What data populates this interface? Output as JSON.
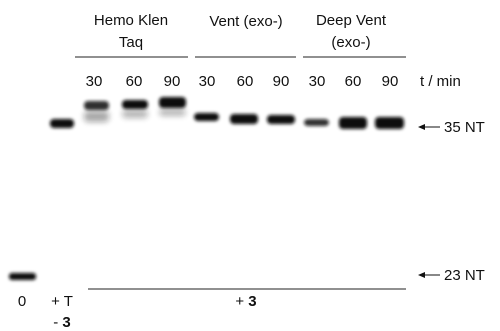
{
  "groups": [
    {
      "lines": [
        "Hemo Klen",
        "Taq"
      ],
      "times": [
        "30",
        "60",
        "90"
      ]
    },
    {
      "lines": [
        "Vent (exo-)"
      ],
      "times": [
        "30",
        "60",
        "90"
      ]
    },
    {
      "lines": [
        "Deep Vent",
        "(exo-)"
      ],
      "times": [
        "30",
        "60",
        "90"
      ]
    }
  ],
  "time_axis_label": "t / min",
  "markers": [
    {
      "label": "35 NT"
    },
    {
      "label": "23 NT"
    }
  ],
  "lanes_bottom": {
    "zero": "0",
    "control": {
      "line1": "+ T",
      "sign": "-",
      "compound": "3"
    },
    "reaction": {
      "sign": "+",
      "compound": "3"
    }
  }
}
